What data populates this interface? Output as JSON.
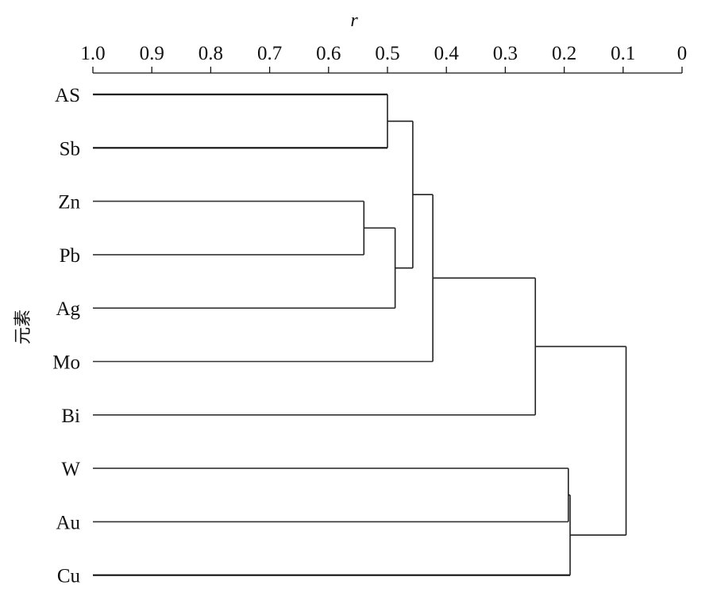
{
  "chart_data": {
    "type": "dendrogram",
    "x_axis_title": "r",
    "y_axis_title": "元素",
    "x_ticks": [
      "1.0",
      "0.9",
      "0.8",
      "0.7",
      "0.6",
      "0.5",
      "0.4",
      "0.3",
      "0.2",
      "0.1",
      "0"
    ],
    "xlim": [
      1.0,
      0
    ],
    "axis_position": "top",
    "leaves": [
      "AS",
      "Sb",
      "Zn",
      "Pb",
      "Ag",
      "Mo",
      "Bi",
      "W",
      "Au",
      "Cu"
    ],
    "merges": [
      {
        "a": "AS",
        "b": "Sb",
        "r": 0.5
      },
      {
        "a": "Zn",
        "b": "Pb",
        "r": 0.54
      },
      {
        "a": "Zn+Pb",
        "b": "Ag",
        "r": 0.487
      },
      {
        "a": "AS+Sb",
        "b": "Zn+Pb+Ag",
        "r": 0.457
      },
      {
        "a": "AS+Sb+Zn+Pb+Ag",
        "b": "Mo",
        "r": 0.423
      },
      {
        "a": "AS+Sb+Zn+Pb+Ag+Mo",
        "b": "Bi",
        "r": 0.249
      },
      {
        "a": "W",
        "b": "Au",
        "r": 0.193
      },
      {
        "a": "W+Au",
        "b": "Cu",
        "r": 0.19
      },
      {
        "a": "AS+Sb+Zn+Pb+Ag+Mo+Bi",
        "b": "W+Au+Cu",
        "r": 0.095
      }
    ]
  }
}
